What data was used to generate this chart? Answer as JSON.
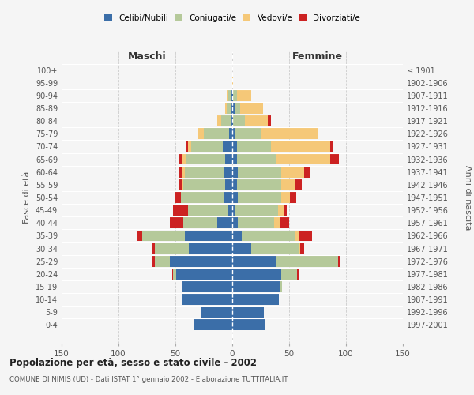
{
  "age_groups": [
    "0-4",
    "5-9",
    "10-14",
    "15-19",
    "20-24",
    "25-29",
    "30-34",
    "35-39",
    "40-44",
    "45-49",
    "50-54",
    "55-59",
    "60-64",
    "65-69",
    "70-74",
    "75-79",
    "80-84",
    "85-89",
    "90-94",
    "95-99",
    "100+"
  ],
  "birth_years": [
    "1997-2001",
    "1992-1996",
    "1987-1991",
    "1982-1986",
    "1977-1981",
    "1972-1976",
    "1967-1971",
    "1962-1966",
    "1957-1961",
    "1952-1956",
    "1947-1951",
    "1942-1946",
    "1937-1941",
    "1932-1936",
    "1927-1931",
    "1922-1926",
    "1917-1921",
    "1912-1916",
    "1907-1911",
    "1902-1906",
    "≤ 1901"
  ],
  "males": {
    "celibi": [
      34,
      28,
      44,
      44,
      49,
      55,
      38,
      42,
      13,
      4,
      7,
      6,
      7,
      6,
      8,
      3,
      1,
      1,
      1,
      0,
      0
    ],
    "coniugati": [
      0,
      0,
      0,
      0,
      3,
      13,
      30,
      37,
      30,
      35,
      38,
      37,
      35,
      34,
      28,
      22,
      9,
      4,
      3,
      0,
      0
    ],
    "vedovi": [
      0,
      0,
      0,
      0,
      0,
      0,
      0,
      0,
      0,
      0,
      0,
      1,
      2,
      4,
      3,
      5,
      3,
      1,
      1,
      0,
      0
    ],
    "divorziati": [
      0,
      0,
      0,
      0,
      1,
      2,
      3,
      5,
      12,
      13,
      5,
      3,
      3,
      3,
      1,
      0,
      0,
      0,
      0,
      0,
      0
    ]
  },
  "females": {
    "nubili": [
      29,
      28,
      41,
      42,
      43,
      38,
      17,
      8,
      5,
      3,
      5,
      4,
      5,
      4,
      4,
      3,
      1,
      2,
      1,
      0,
      0
    ],
    "coniugate": [
      0,
      0,
      0,
      2,
      14,
      55,
      41,
      47,
      32,
      37,
      38,
      39,
      38,
      34,
      30,
      22,
      10,
      5,
      3,
      0,
      0
    ],
    "vedove": [
      0,
      0,
      0,
      0,
      0,
      0,
      2,
      3,
      5,
      5,
      8,
      12,
      20,
      48,
      52,
      50,
      20,
      20,
      13,
      1,
      0
    ],
    "divorziate": [
      0,
      0,
      0,
      0,
      1,
      2,
      3,
      12,
      8,
      3,
      5,
      6,
      5,
      8,
      2,
      0,
      3,
      0,
      0,
      0,
      0
    ]
  },
  "colors": {
    "celibi": "#3b6ea8",
    "coniugati": "#b5c99a",
    "vedovi": "#f5c878",
    "divorziati": "#cc2222"
  },
  "xlim": 150,
  "title": "Popolazione per età, sesso e stato civile - 2002",
  "subtitle": "COMUNE DI NIMIS (UD) - Dati ISTAT 1° gennaio 2002 - Elaborazione TUTTITALIA.IT",
  "ylabel_left": "Fasce di età",
  "ylabel_right": "Anni di nascita",
  "xlabel_left": "Maschi",
  "xlabel_right": "Femmine",
  "bg_color": "#f5f5f5",
  "grid_color": "#cccccc"
}
